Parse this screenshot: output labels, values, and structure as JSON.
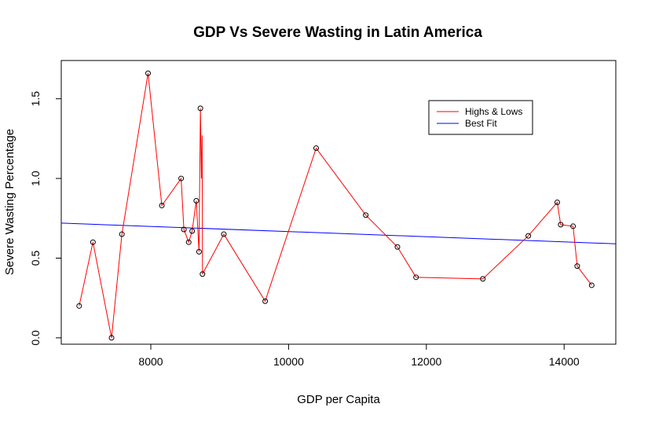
{
  "chart_data": {
    "type": "line",
    "title": "GDP Vs Severe Wasting in Latin America",
    "xlabel": "GDP per Capita",
    "ylabel": "Severe Wasting Percentage",
    "xlim": [
      6700,
      14750
    ],
    "ylim": [
      -0.04,
      1.74
    ],
    "xticks": [
      8000,
      10000,
      12000,
      14000
    ],
    "xtick_labels": [
      "8000",
      "10000",
      "12000",
      "14000"
    ],
    "yticks": [
      0.0,
      0.5,
      1.0,
      1.5
    ],
    "ytick_labels": [
      "0.0",
      "0.5",
      "1.0",
      "1.5"
    ],
    "legend_position": "top-right",
    "series": [
      {
        "name": "Highs & Lows",
        "color": "#ff0000",
        "style": "line-with-points",
        "points": [
          [
            6960,
            0.2
          ],
          [
            7160,
            0.6
          ],
          [
            7430,
            0.0
          ],
          [
            7580,
            0.65
          ],
          [
            7960,
            1.66
          ],
          [
            8160,
            0.83
          ],
          [
            8440,
            1.0
          ],
          [
            8480,
            0.68
          ],
          [
            8550,
            0.6
          ],
          [
            8600,
            0.67
          ],
          [
            8660,
            0.86
          ],
          [
            8700,
            0.54
          ],
          [
            8720,
            1.44
          ],
          [
            8735,
            1.0
          ],
          [
            8745,
            1.27
          ],
          [
            8750,
            0.4
          ],
          [
            9060,
            0.65
          ],
          [
            9660,
            0.23
          ],
          [
            10400,
            1.19
          ],
          [
            11120,
            0.77
          ],
          [
            11580,
            0.57
          ],
          [
            11850,
            0.38
          ],
          [
            12820,
            0.37
          ],
          [
            13480,
            0.64
          ],
          [
            13900,
            0.85
          ],
          [
            13950,
            0.71
          ],
          [
            14130,
            0.7
          ],
          [
            14190,
            0.45
          ],
          [
            14400,
            0.33
          ]
        ],
        "markers": [
          [
            6960,
            0.2
          ],
          [
            7160,
            0.6
          ],
          [
            7430,
            0.0
          ],
          [
            7580,
            0.65
          ],
          [
            7960,
            1.66
          ],
          [
            8160,
            0.83
          ],
          [
            8440,
            1.0
          ],
          [
            8480,
            0.68
          ],
          [
            8550,
            0.6
          ],
          [
            8600,
            0.67
          ],
          [
            8660,
            0.86
          ],
          [
            8700,
            0.54
          ],
          [
            8720,
            1.44
          ],
          [
            8750,
            0.4
          ],
          [
            9060,
            0.65
          ],
          [
            9660,
            0.23
          ],
          [
            10400,
            1.19
          ],
          [
            11120,
            0.77
          ],
          [
            11580,
            0.57
          ],
          [
            11850,
            0.38
          ],
          [
            12820,
            0.37
          ],
          [
            13480,
            0.64
          ],
          [
            13900,
            0.85
          ],
          [
            13950,
            0.71
          ],
          [
            14130,
            0.7
          ],
          [
            14190,
            0.45
          ],
          [
            14400,
            0.33
          ]
        ]
      },
      {
        "name": "Best Fit",
        "color": "#0000ff",
        "style": "line",
        "points": [
          [
            6700,
            0.72
          ],
          [
            14750,
            0.59
          ]
        ]
      }
    ]
  }
}
